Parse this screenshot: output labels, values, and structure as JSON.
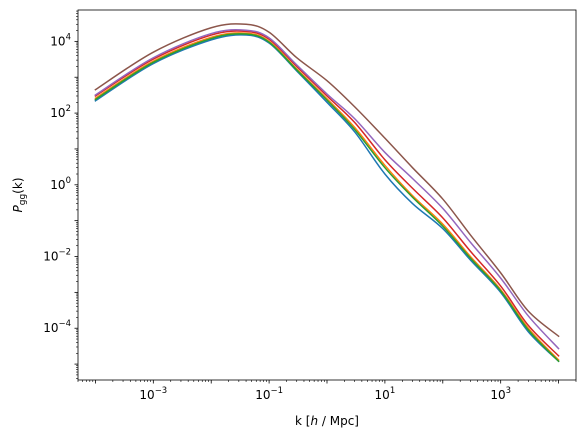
{
  "chart_data": {
    "type": "line",
    "title": "",
    "xlabel_parts": [
      "k [",
      "h",
      " / Mpc]"
    ],
    "ylabel_parts": [
      "P",
      "gg",
      "(k)"
    ],
    "x_scale": "log",
    "y_scale": "log",
    "xlim": [
      5e-05,
      20000
    ],
    "ylim": [
      3.6e-06,
      75000
    ],
    "x_ticks": [
      {
        "value": 0.001,
        "base": "10",
        "exp": "−3"
      },
      {
        "value": 0.1,
        "base": "10",
        "exp": "−1"
      },
      {
        "value": 10,
        "base": "10",
        "exp": "1"
      },
      {
        "value": 1000,
        "base": "10",
        "exp": "3"
      }
    ],
    "y_ticks": [
      {
        "value": 0.0001,
        "base": "10",
        "exp": "−4"
      },
      {
        "value": 0.01,
        "base": "10",
        "exp": "−2"
      },
      {
        "value": 1,
        "base": "10",
        "exp": "0"
      },
      {
        "value": 100,
        "base": "10",
        "exp": "2"
      },
      {
        "value": 10000,
        "base": "10",
        "exp": "4"
      }
    ],
    "grid": false,
    "legend": "none",
    "series": [
      {
        "color": "#1f77b4",
        "x": [
          0.0001,
          0.001,
          0.01,
          0.04,
          0.1,
          0.3,
          1,
          3,
          10,
          30,
          100,
          300,
          1000,
          3000,
          10000
        ],
        "y": [
          220,
          2400,
          11000,
          15000,
          9000,
          1500,
          200,
          30,
          2,
          0.3,
          0.06,
          0.008,
          0.001,
          8e-05,
          1.2e-05
        ]
      },
      {
        "color": "#ff7f0e",
        "x": [
          0.0001,
          0.001,
          0.01,
          0.04,
          0.1,
          0.3,
          1,
          3,
          10,
          30,
          100,
          300,
          1000,
          3000,
          10000
        ],
        "y": [
          260,
          2800,
          13000,
          17000,
          10000,
          1700,
          250,
          40,
          3.5,
          0.5,
          0.08,
          0.01,
          0.0012,
          0.0001,
          1.3e-05
        ]
      },
      {
        "color": "#2ca02c",
        "x": [
          0.0001,
          0.001,
          0.01,
          0.04,
          0.1,
          0.3,
          1,
          3,
          10,
          30,
          100,
          300,
          1000,
          3000,
          10000
        ],
        "y": [
          240,
          2600,
          12000,
          16000,
          9500,
          1600,
          230,
          35,
          3,
          0.45,
          0.07,
          0.009,
          0.0011,
          9e-05,
          1.2e-05
        ]
      },
      {
        "color": "#d62728",
        "x": [
          0.0001,
          0.001,
          0.01,
          0.04,
          0.1,
          0.3,
          1,
          3,
          10,
          30,
          100,
          300,
          1000,
          3000,
          10000
        ],
        "y": [
          300,
          3200,
          15000,
          19000,
          11500,
          2000,
          300,
          55,
          5,
          0.8,
          0.12,
          0.014,
          0.0015,
          0.00012,
          1.7e-05
        ]
      },
      {
        "color": "#9467bd",
        "x": [
          0.0001,
          0.001,
          0.01,
          0.04,
          0.1,
          0.3,
          1,
          3,
          10,
          30,
          100,
          300,
          1000,
          3000,
          10000
        ],
        "y": [
          320,
          3500,
          16500,
          20500,
          12500,
          2200,
          340,
          70,
          8,
          1.5,
          0.22,
          0.025,
          0.0025,
          0.00022,
          2.7e-05
        ]
      },
      {
        "color": "#8c564b",
        "x": [
          0.0001,
          0.001,
          0.01,
          0.04,
          0.1,
          0.3,
          1,
          3,
          10,
          30,
          100,
          300,
          1000,
          3000,
          10000
        ],
        "y": [
          450,
          5000,
          24000,
          30000,
          18000,
          3500,
          800,
          150,
          20,
          3,
          0.4,
          0.04,
          0.0035,
          0.0003,
          6e-05
        ]
      }
    ]
  }
}
